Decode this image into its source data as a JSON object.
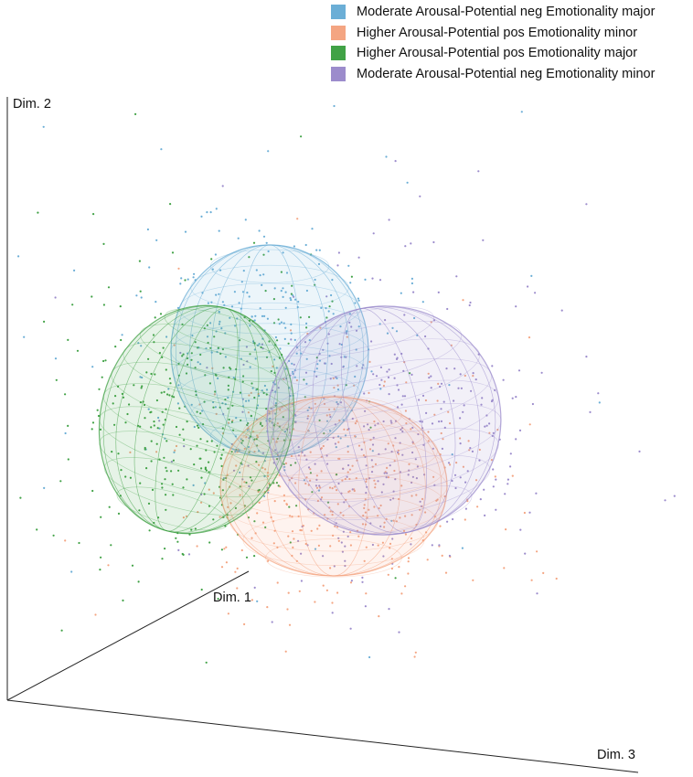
{
  "chart_data": {
    "type": "scatter",
    "projection": "3d",
    "axes": {
      "x": "Dim. 1",
      "y": "Dim. 2",
      "z": "Dim. 3"
    },
    "grid": false,
    "legend_position": "top-right",
    "series": [
      {
        "name": "Moderate Arousal-Potential neg Emotionality major",
        "color": "#6baed6",
        "ellipsoid": true
      },
      {
        "name": "Higher Arousal-Potential pos Emotionality minor",
        "color": "#f4a582",
        "ellipsoid": true
      },
      {
        "name": "Higher Arousal-Potential pos Emotionality major",
        "color": "#41a246",
        "ellipsoid": true
      },
      {
        "name": "Moderate Arousal-Potential neg Emotionality minor",
        "color": "#9c8ccc",
        "ellipsoid": true
      }
    ]
  }
}
